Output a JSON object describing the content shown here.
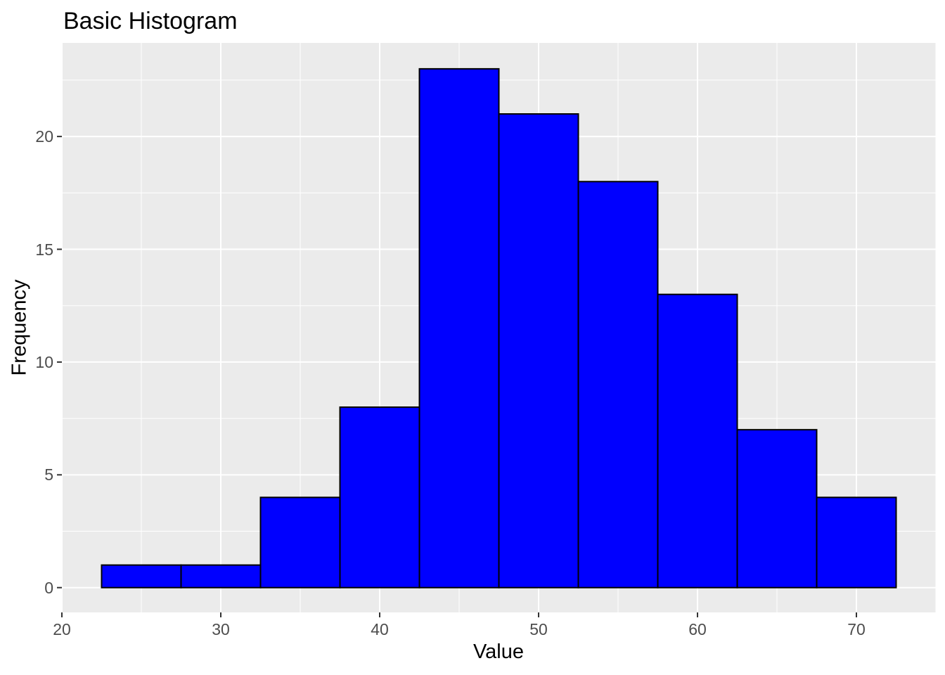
{
  "chart_data": {
    "type": "bar",
    "subtype": "histogram",
    "title": "Basic Histogram",
    "xlabel": "Value",
    "ylabel": "Frequency",
    "bin_width": 5,
    "bin_edges": [
      22.5,
      27.5,
      32.5,
      37.5,
      42.5,
      47.5,
      52.5,
      57.5,
      62.5,
      67.5,
      72.5
    ],
    "counts": [
      1,
      1,
      4,
      8,
      23,
      21,
      18,
      13,
      7,
      4
    ],
    "x_ticks": [
      20,
      30,
      40,
      50,
      60,
      70
    ],
    "y_ticks": [
      0,
      5,
      10,
      15,
      20
    ],
    "x_minor_ticks": [
      25,
      35,
      45,
      55,
      65,
      75
    ],
    "y_minor_ticks": [
      2.5,
      7.5,
      12.5,
      17.5,
      22.5
    ],
    "x_range": [
      20,
      75
    ],
    "y_range": [
      -1.1,
      24.15
    ],
    "grid": "major-and-minor",
    "legend": "none",
    "colors": {
      "bar_fill": "#0000FF",
      "bar_stroke": "#000000",
      "panel_bg": "#EBEBEB",
      "grid_major": "#FFFFFF",
      "grid_minor": "#FFFFFF",
      "tick_mark": "#333333",
      "tick_label": "#4D4D4D",
      "title_text": "#000000",
      "plot_bg": "#FFFFFF"
    }
  }
}
